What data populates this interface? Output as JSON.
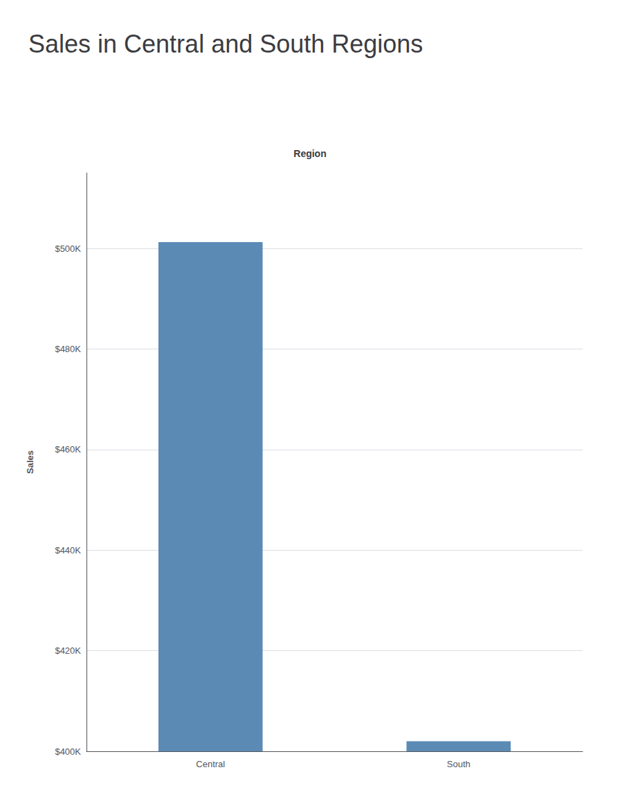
{
  "chart_data": {
    "type": "bar",
    "title": "Sales in Central and South Regions",
    "xlabel": "Region",
    "ylabel": "Sales",
    "categories": [
      "Central",
      "South"
    ],
    "values": [
      501240,
      402000
    ],
    "color": "#5b8ab5",
    "ylim": [
      400000,
      515000
    ],
    "yticks": [
      {
        "value": 400000,
        "label": "$400K"
      },
      {
        "value": 420000,
        "label": "$420K"
      },
      {
        "value": 440000,
        "label": "$440K"
      },
      {
        "value": 460000,
        "label": "$460K"
      },
      {
        "value": 480000,
        "label": "$480K"
      },
      {
        "value": 500000,
        "label": "$500K"
      }
    ],
    "grid": true
  }
}
